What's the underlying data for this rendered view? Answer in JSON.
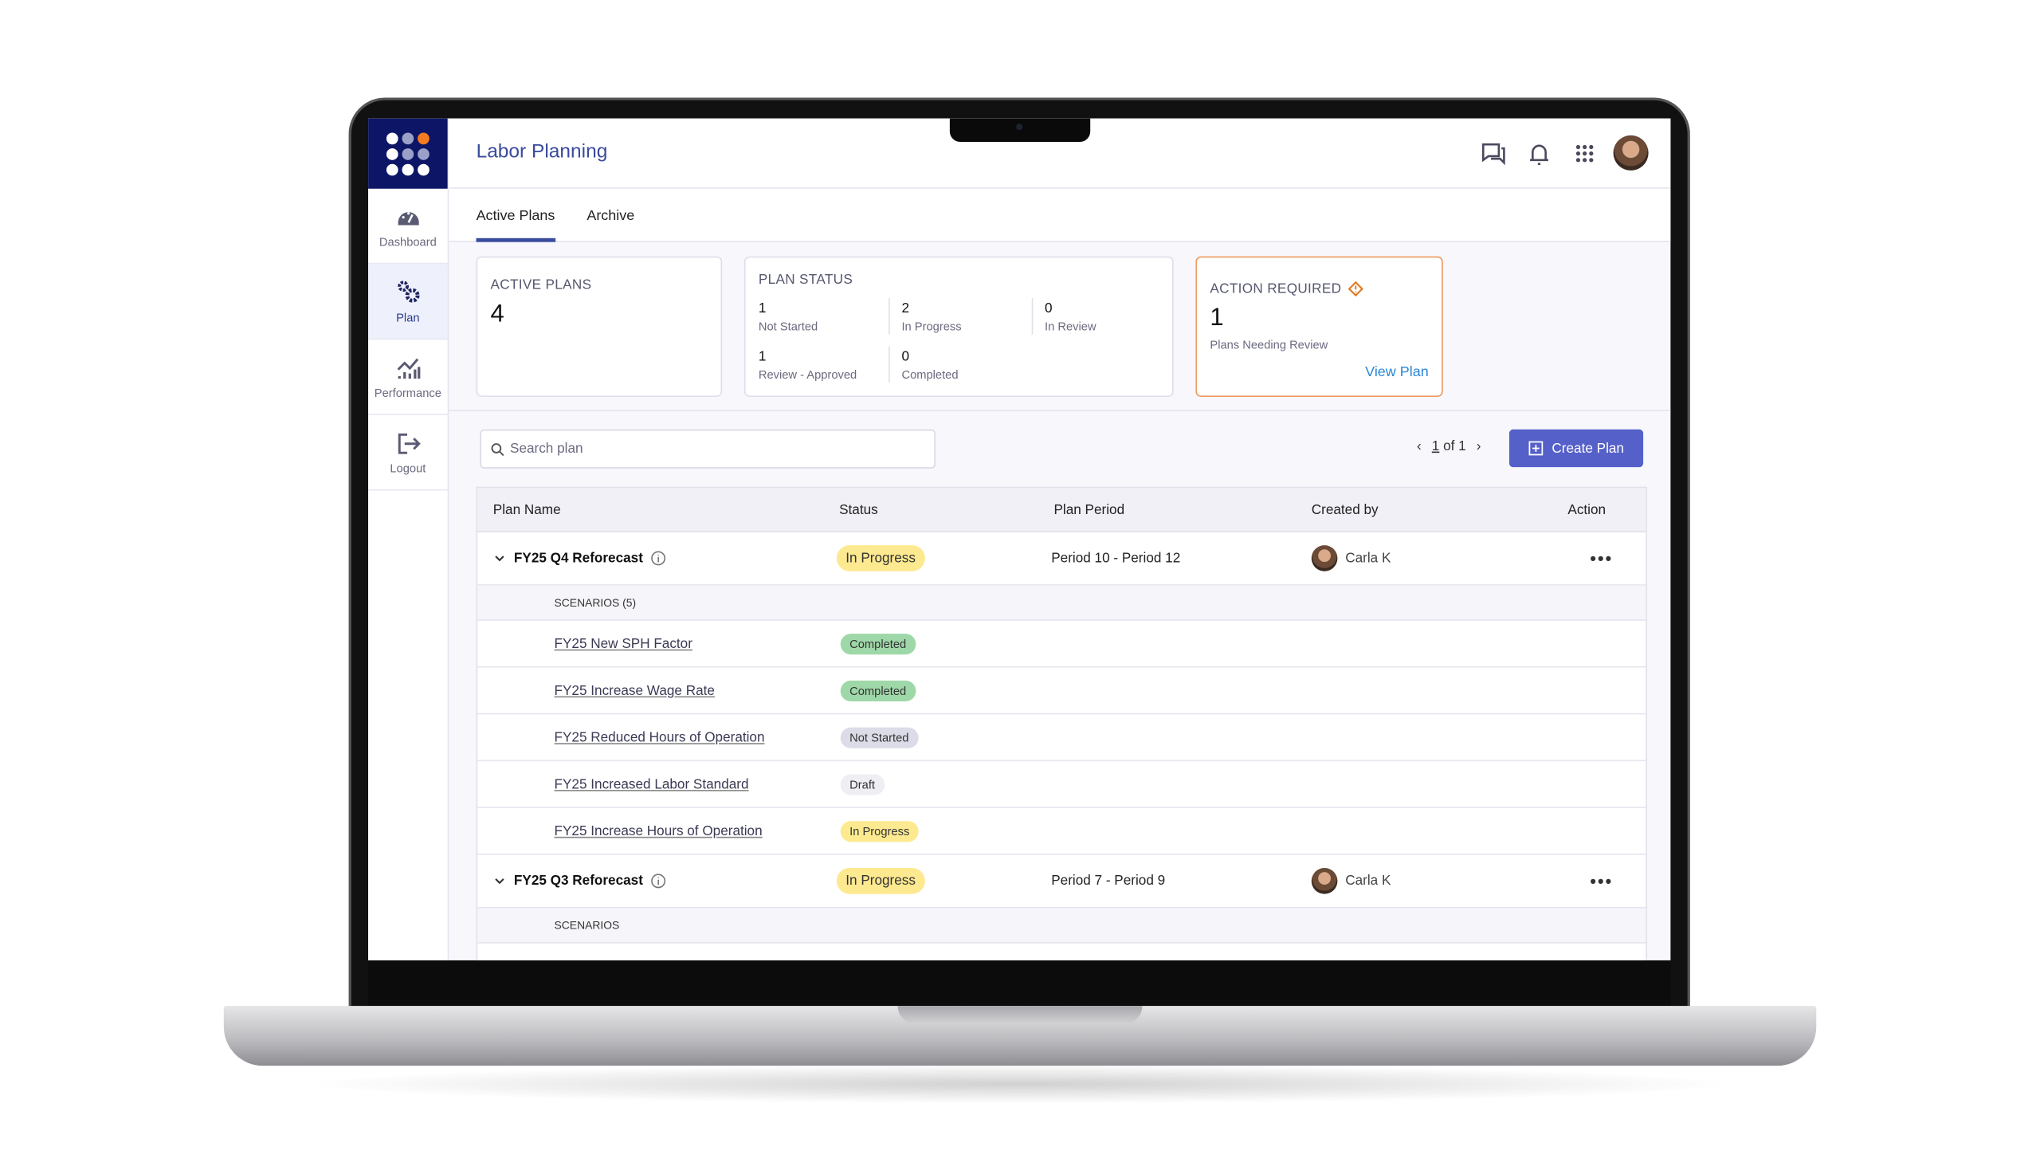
{
  "app": {
    "title": "Labor Planning",
    "brand_colors": {
      "primary": "#3a4a9c",
      "sidebar": "#0d1566",
      "accent": "#f47b20",
      "button": "#5560c8"
    }
  },
  "sidebar": {
    "items": [
      {
        "label": "Dashboard",
        "icon": "gauge-icon"
      },
      {
        "label": "Plan",
        "icon": "gears-icon",
        "active": true
      },
      {
        "label": "Performance",
        "icon": "chart-icon"
      },
      {
        "label": "Logout",
        "icon": "logout-icon"
      }
    ]
  },
  "header": {
    "icons": [
      "chat-icon",
      "bell-icon",
      "apps-grid-icon",
      "user-avatar"
    ]
  },
  "tabs": [
    {
      "label": "Active Plans",
      "active": true
    },
    {
      "label": "Archive"
    }
  ],
  "cards": {
    "active_plans": {
      "label": "ACTIVE PLANS",
      "value": "4"
    },
    "plan_status": {
      "label": "PLAN STATUS",
      "stats": [
        {
          "value": "1",
          "label": "Not Started"
        },
        {
          "value": "2",
          "label": "In Progress"
        },
        {
          "value": "0",
          "label": "In Review"
        },
        {
          "value": "1",
          "label": "Review - Approved"
        },
        {
          "value": "0",
          "label": "Completed"
        }
      ]
    },
    "action_required": {
      "label": "ACTION REQUIRED",
      "value": "1",
      "sub": "Plans Needing Review",
      "link": "View Plan"
    }
  },
  "search": {
    "placeholder": "Search plan"
  },
  "pager": {
    "current": "1",
    "text": "of 1"
  },
  "create_button": "Create Plan",
  "table": {
    "columns": [
      "Plan Name",
      "Status",
      "Plan Period",
      "Created by",
      "Action"
    ],
    "plans": [
      {
        "name": "FY25 Q4 Reforecast",
        "status": "In Progress",
        "period": "Period 10 - Period 12",
        "created_by": "Carla K",
        "scenarios_label": "SCENARIOS (5)",
        "scenarios": [
          {
            "name": "FY25 New SPH Factor",
            "status": "Completed"
          },
          {
            "name": "FY25 Increase Wage Rate",
            "status": "Completed"
          },
          {
            "name": "FY25 Reduced Hours of Operation",
            "status": "Not Started"
          },
          {
            "name": "FY25 Increased Labor Standard",
            "status": "Draft"
          },
          {
            "name": "FY25 Increase Hours of Operation",
            "status": "In Progress"
          }
        ]
      },
      {
        "name": "FY25 Q3 Reforecast",
        "status": "In Progress",
        "period": "Period 7 - Period 9",
        "created_by": "Carla K",
        "scenarios_label": "SCENARIOS"
      }
    ]
  }
}
